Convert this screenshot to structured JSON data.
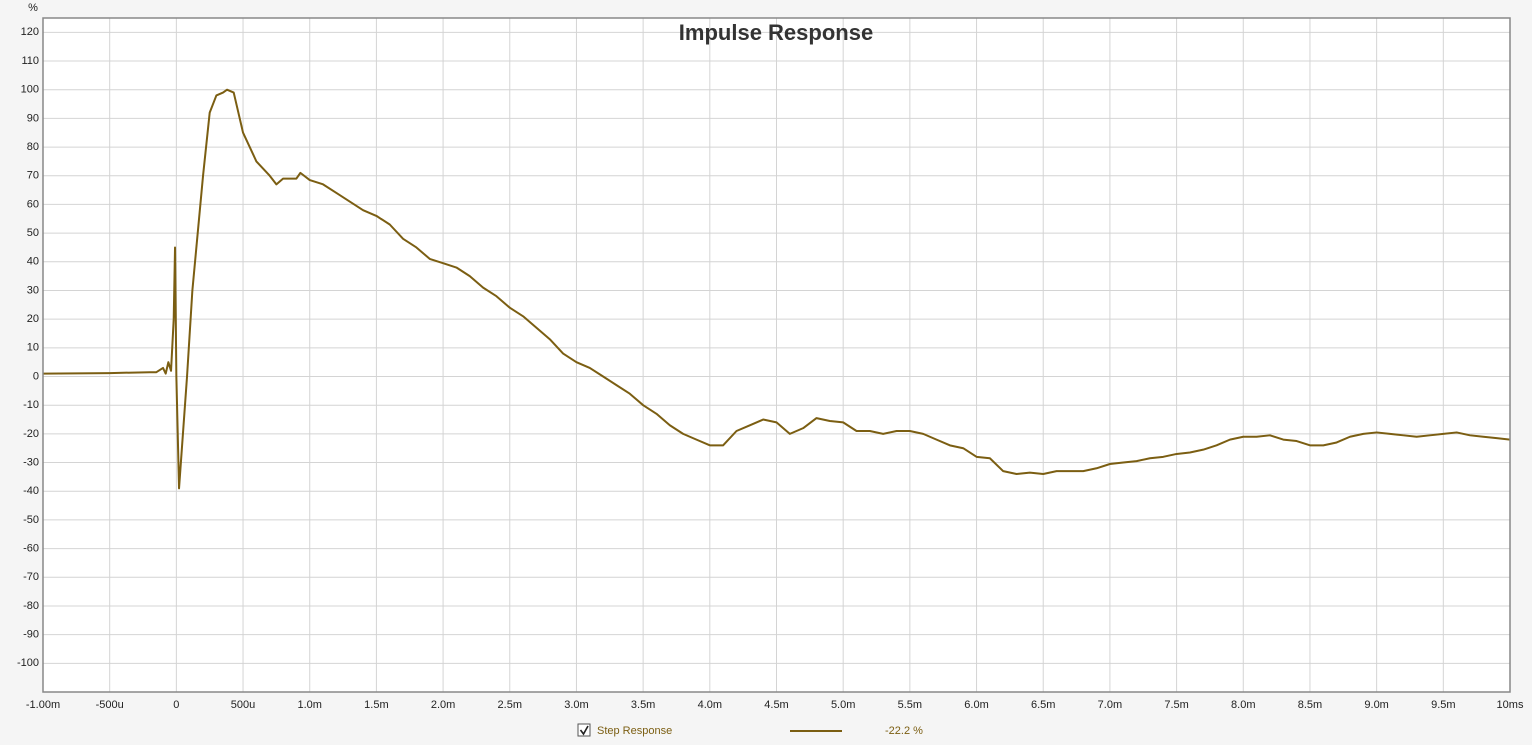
{
  "chart_data": {
    "type": "line",
    "title": "Impulse Response",
    "y_unit": "%",
    "x": [
      -1.0,
      -0.5,
      -0.2,
      -0.15,
      -0.1,
      -0.08,
      -0.06,
      -0.04,
      -0.02,
      -0.01,
      0.0,
      0.02,
      0.08,
      0.12,
      0.2,
      0.25,
      0.3,
      0.35,
      0.38,
      0.43,
      0.5,
      0.6,
      0.7,
      0.75,
      0.8,
      0.9,
      0.93,
      1.0,
      1.1,
      1.2,
      1.3,
      1.4,
      1.5,
      1.6,
      1.7,
      1.8,
      1.9,
      2.0,
      2.1,
      2.2,
      2.3,
      2.4,
      2.5,
      2.6,
      2.7,
      2.8,
      2.9,
      3.0,
      3.1,
      3.2,
      3.3,
      3.4,
      3.5,
      3.6,
      3.7,
      3.8,
      3.9,
      4.0,
      4.1,
      4.2,
      4.3,
      4.4,
      4.5,
      4.6,
      4.7,
      4.8,
      4.9,
      5.0,
      5.1,
      5.2,
      5.3,
      5.4,
      5.5,
      5.6,
      5.7,
      5.8,
      5.9,
      6.0,
      6.1,
      6.2,
      6.3,
      6.4,
      6.5,
      6.6,
      6.7,
      6.8,
      6.9,
      7.0,
      7.1,
      7.2,
      7.3,
      7.4,
      7.5,
      7.6,
      7.7,
      7.8,
      7.9,
      8.0,
      8.1,
      8.2,
      8.3,
      8.4,
      8.5,
      8.6,
      8.7,
      8.8,
      8.9,
      9.0,
      9.1,
      9.2,
      9.3,
      9.4,
      9.5,
      9.6,
      9.7,
      9.8,
      9.9,
      10.0
    ],
    "series": [
      {
        "name": "Step Response",
        "color": "#7b5e12",
        "readout": "-22.2 %",
        "values": [
          1,
          1.2,
          1.5,
          1.5,
          3,
          1,
          5,
          2,
          20,
          45,
          0,
          -39,
          0,
          30,
          70,
          92,
          98,
          99,
          100,
          99,
          85,
          75,
          70,
          67,
          69,
          69,
          71,
          68.5,
          67,
          64,
          61,
          58,
          56,
          53,
          48,
          45,
          41,
          39.5,
          38,
          35,
          31,
          28,
          24,
          21,
          17,
          13,
          8,
          5,
          3,
          0,
          -3,
          -6,
          -10,
          -13,
          -17,
          -20,
          -22,
          -24,
          -24,
          -19,
          -17,
          -15,
          -16,
          -20,
          -18,
          -14.5,
          -15.5,
          -16,
          -19,
          -19,
          -20,
          -19,
          -19,
          -20,
          -22,
          -24,
          -25,
          -28,
          -28.5,
          -33,
          -34,
          -33.5,
          -34,
          -33,
          -33,
          -33,
          -32,
          -30.5,
          -30,
          -29.5,
          -28.5,
          -28,
          -27,
          -26.5,
          -25.5,
          -24,
          -22,
          -21,
          -21,
          -20.5,
          -22,
          -22.5,
          -24,
          -24,
          -23,
          -21,
          -20,
          -19.5,
          -20,
          -20.5,
          -21,
          -20.5,
          -20,
          -19.5,
          -20.5,
          -21,
          -21.5,
          -22
        ]
      }
    ],
    "xlim": [
      -1.0,
      10.0
    ],
    "xticks": [
      {
        "value": -1.0,
        "label": "-1.00m"
      },
      {
        "value": -0.5,
        "label": "-500u"
      },
      0,
      {
        "value": 0.5,
        "label": "500u"
      },
      {
        "value": 1.0,
        "label": "1.0m"
      },
      {
        "value": 1.5,
        "label": "1.5m"
      },
      {
        "value": 2.0,
        "label": "2.0m"
      },
      {
        "value": 2.5,
        "label": "2.5m"
      },
      {
        "value": 3.0,
        "label": "3.0m"
      },
      {
        "value": 3.5,
        "label": "3.5m"
      },
      {
        "value": 4.0,
        "label": "4.0m"
      },
      {
        "value": 4.5,
        "label": "4.5m"
      },
      {
        "value": 5.0,
        "label": "5.0m"
      },
      {
        "value": 5.5,
        "label": "5.5m"
      },
      {
        "value": 6.0,
        "label": "6.0m"
      },
      {
        "value": 6.5,
        "label": "6.5m"
      },
      {
        "value": 7.0,
        "label": "7.0m"
      },
      {
        "value": 7.5,
        "label": "7.5m"
      },
      {
        "value": 8.0,
        "label": "8.0m"
      },
      {
        "value": 8.5,
        "label": "8.5m"
      },
      {
        "value": 9.0,
        "label": "9.0m"
      },
      {
        "value": 9.5,
        "label": "9.5m"
      },
      {
        "value": 10.0,
        "label": "10ms"
      }
    ],
    "ylim": [
      -110,
      125
    ],
    "yticks": [
      120,
      110,
      100,
      90,
      80,
      70,
      60,
      50,
      40,
      30,
      20,
      10,
      0,
      -10,
      -20,
      -30,
      -40,
      -50,
      -60,
      -70,
      -80,
      -90,
      -100
    ],
    "grid": true
  }
}
